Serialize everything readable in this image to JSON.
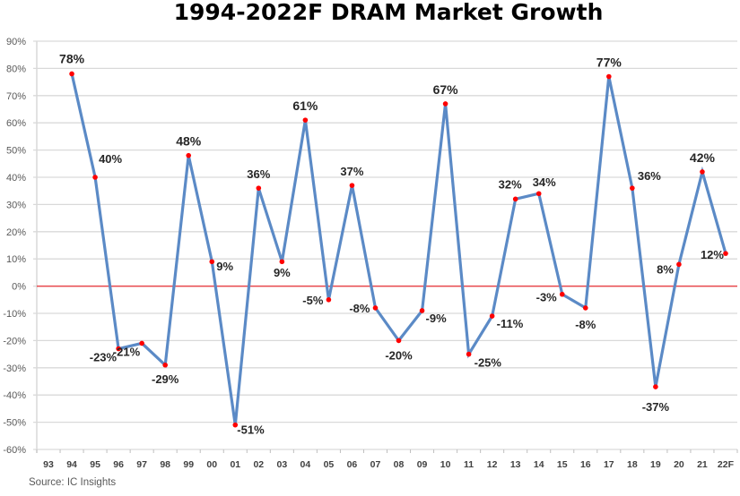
{
  "chart_data": {
    "type": "line",
    "title": "1994-2022F DRAM Market Growth",
    "xlabel": "",
    "ylabel": "",
    "categories": [
      "93",
      "94",
      "95",
      "96",
      "97",
      "98",
      "99",
      "00",
      "01",
      "02",
      "03",
      "04",
      "05",
      "06",
      "07",
      "08",
      "09",
      "10",
      "11",
      "12",
      "13",
      "14",
      "15",
      "16",
      "17",
      "18",
      "19",
      "20",
      "21",
      "22F"
    ],
    "series": [
      {
        "name": "DRAM Market Growth",
        "values": [
          null,
          78,
          40,
          -23,
          -21,
          -29,
          48,
          9,
          -51,
          36,
          9,
          61,
          -5,
          37,
          -8,
          -20,
          -9,
          67,
          -25,
          -11,
          32,
          34,
          -3,
          -8,
          77,
          36,
          -37,
          8,
          42,
          12
        ],
        "labels": [
          "",
          "78%",
          "40%",
          "-23%",
          "-21%",
          "-29%",
          "48%",
          "9%",
          "-51%",
          "36%",
          "9%",
          "61%",
          "-5%",
          "37%",
          "-8%",
          "-20%",
          "-9%",
          "67%",
          "-25%",
          "-11%",
          "32%",
          "34%",
          "-3%",
          "-8%",
          "77%",
          "36%",
          "-37%",
          "8%",
          "42%",
          "12%"
        ]
      }
    ],
    "ylim": [
      -60,
      90
    ],
    "yticks": [
      90,
      80,
      70,
      60,
      50,
      40,
      30,
      20,
      10,
      0,
      -10,
      -20,
      -30,
      -40,
      -50,
      -60
    ],
    "ytick_labels": [
      "90%",
      "80%",
      "70%",
      "60%",
      "50%",
      "40%",
      "30%",
      "20%",
      "10%",
      "0%",
      "-10%",
      "-20%",
      "-30%",
      "-40%",
      "-50%",
      "-60%"
    ],
    "grid": true,
    "legend": "none",
    "reference_line": {
      "value": 0,
      "color": "#e8474c"
    },
    "colors": {
      "line": "#5b8ac6",
      "marker": "#ff0000",
      "grid": "#d9d9d9"
    }
  },
  "footer": {
    "source": "Source:  IC Insights"
  }
}
